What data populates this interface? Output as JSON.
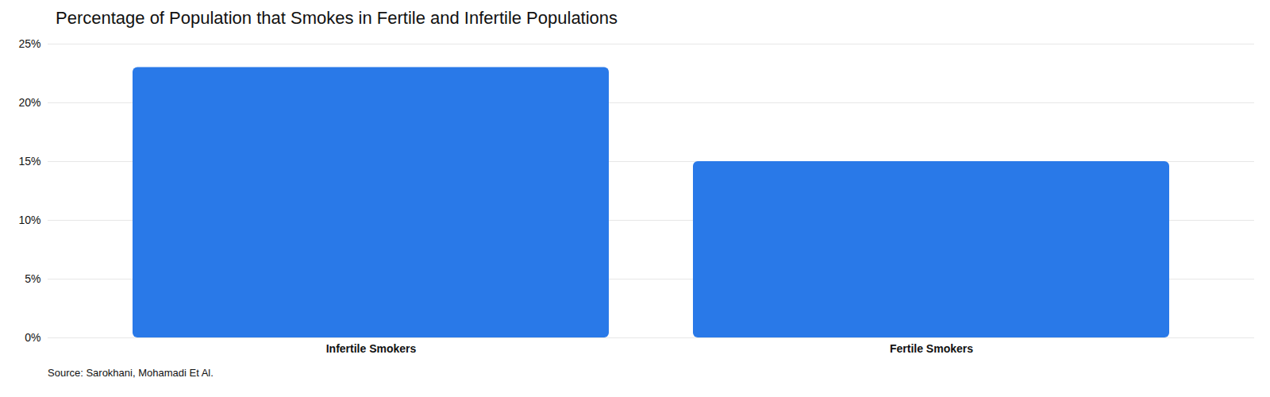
{
  "chart_data": {
    "type": "bar",
    "title": "Percentage of Population that Smokes in Fertile and Infertile Populations",
    "categories": [
      "Infertile Smokers",
      "Fertile Smokers"
    ],
    "values": [
      23,
      15
    ],
    "color": "#2979e8",
    "ylim": [
      0,
      25
    ],
    "yticks": [
      {
        "value": 0,
        "label": "0%"
      },
      {
        "value": 5,
        "label": "5%"
      },
      {
        "value": 10,
        "label": "10%"
      },
      {
        "value": 15,
        "label": "15%"
      },
      {
        "value": 20,
        "label": "20%"
      },
      {
        "value": 25,
        "label": "25%"
      }
    ],
    "grid": true,
    "caption": "Source: Sarokhani, Mohamadi Et Al."
  }
}
